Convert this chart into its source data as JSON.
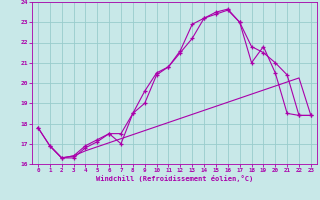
{
  "xlabel": "Windchill (Refroidissement éolien,°C)",
  "bg_color": "#c8e8e8",
  "line_color": "#aa00aa",
  "grid_color": "#99cccc",
  "xlim_min": -0.5,
  "xlim_max": 23.5,
  "ylim_min": 16.0,
  "ylim_max": 24.0,
  "xticks": [
    0,
    1,
    2,
    3,
    4,
    5,
    6,
    7,
    8,
    9,
    10,
    11,
    12,
    13,
    14,
    15,
    16,
    17,
    18,
    19,
    20,
    21,
    22,
    23
  ],
  "yticks": [
    16,
    17,
    18,
    19,
    20,
    21,
    22,
    23,
    24
  ],
  "curve1_x": [
    0,
    1,
    2,
    3,
    4,
    5,
    6,
    7,
    8,
    9,
    10,
    11,
    12,
    13,
    14,
    15,
    16,
    17,
    18,
    19,
    20,
    21,
    22,
    23
  ],
  "curve1_y": [
    17.8,
    16.9,
    16.3,
    16.3,
    16.8,
    17.1,
    17.5,
    17.0,
    18.5,
    19.6,
    20.5,
    20.8,
    21.6,
    22.9,
    23.2,
    23.5,
    23.65,
    23.0,
    21.0,
    21.8,
    20.5,
    18.5,
    18.4,
    18.4
  ],
  "curve2_x": [
    0,
    1,
    2,
    3,
    4,
    5,
    6,
    7,
    8,
    9,
    10,
    11,
    12,
    13,
    14,
    15,
    16,
    17,
    18,
    19,
    20,
    21,
    22,
    23
  ],
  "curve2_y": [
    17.8,
    16.9,
    16.3,
    16.4,
    16.9,
    17.2,
    17.5,
    17.5,
    18.5,
    19.0,
    20.4,
    20.8,
    21.5,
    22.2,
    23.2,
    23.4,
    23.6,
    23.0,
    21.8,
    21.5,
    21.0,
    20.4,
    18.4,
    18.4
  ],
  "curve3_x": [
    1,
    2,
    3,
    4,
    5,
    6,
    7,
    8,
    9,
    10,
    11,
    12,
    13,
    14,
    15,
    16,
    17,
    18,
    19,
    20,
    21,
    22,
    23
  ],
  "curve3_y": [
    16.9,
    16.3,
    16.4,
    16.65,
    16.85,
    17.05,
    17.25,
    17.45,
    17.65,
    17.85,
    18.05,
    18.25,
    18.45,
    18.65,
    18.85,
    19.05,
    19.25,
    19.45,
    19.65,
    19.85,
    20.05,
    20.25,
    18.4
  ]
}
